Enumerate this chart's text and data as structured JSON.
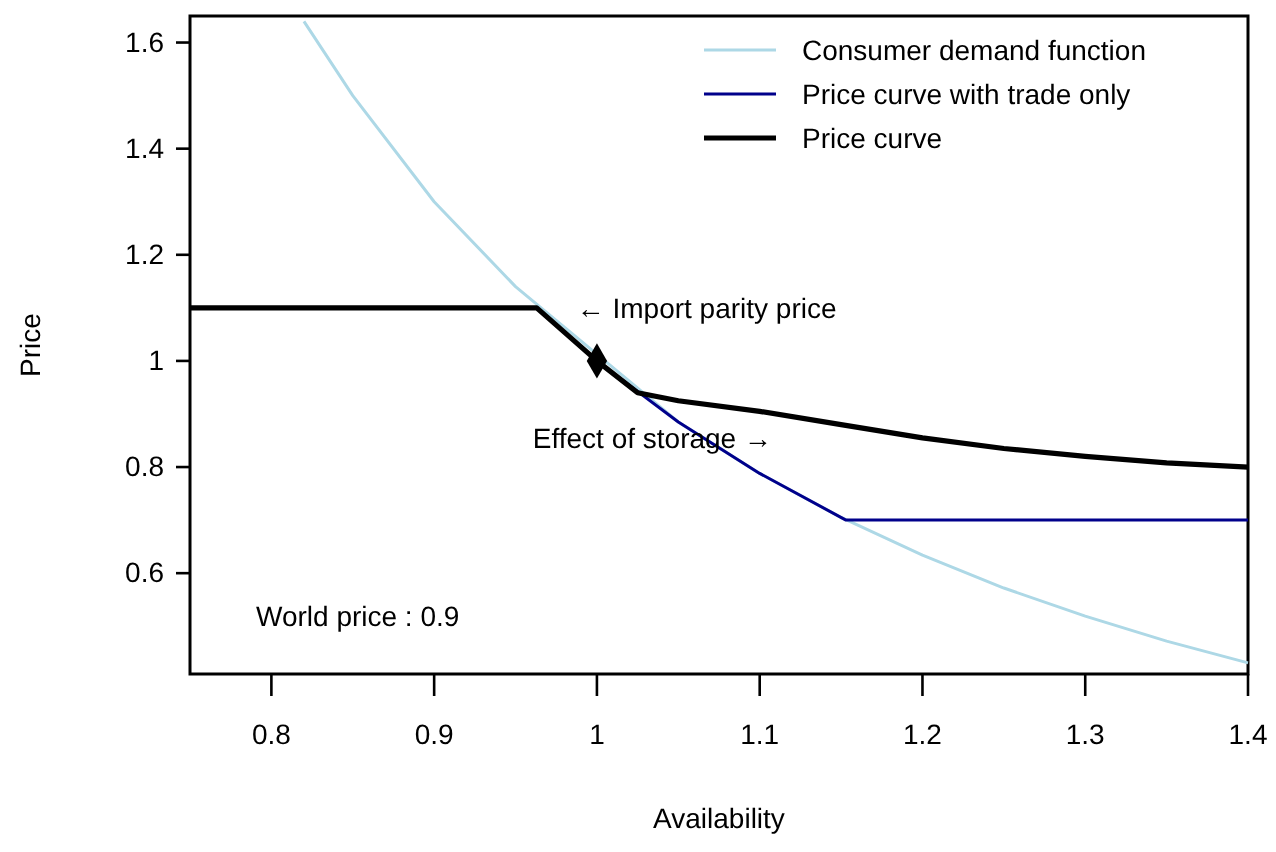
{
  "chart_data": {
    "type": "line",
    "xlabel": "Availability",
    "ylabel": "Price",
    "xlim": [
      0.75,
      1.4
    ],
    "ylim": [
      0.41,
      1.65
    ],
    "xticks": [
      0.8,
      0.9,
      1,
      1.1,
      1.2,
      1.3,
      1.4
    ],
    "yticks": [
      0.6,
      0.8,
      1,
      1.2,
      1.4,
      1.6
    ],
    "grid": false,
    "legend": "top right",
    "series": [
      {
        "name": "Consumer demand function",
        "color": "#add8e6",
        "x": [
          0.82,
          0.85,
          0.9,
          0.95,
          1.05,
          1.1,
          1.15,
          1.2,
          1.25,
          1.3,
          1.35,
          1.4
        ],
        "values": [
          1.64,
          1.5,
          1.3,
          1.14,
          0.885,
          0.788,
          0.705,
          0.634,
          0.572,
          0.519,
          0.472,
          0.431
        ]
      },
      {
        "name": "Price curve with trade only",
        "color": "#00008b",
        "x": [
          0.75,
          0.963,
          1.0,
          1.05,
          1.1,
          1.153,
          1.4
        ],
        "values": [
          1.1,
          1.1,
          1,
          0.885,
          0.788,
          0.7,
          0.7
        ]
      },
      {
        "name": "Price curve",
        "color": "#000000",
        "x": [
          0.75,
          0.963,
          1.0,
          1.025,
          1.05,
          1.1,
          1.15,
          1.2,
          1.25,
          1.3,
          1.35,
          1.4
        ],
        "values": [
          1.1,
          1.1,
          1,
          0.94,
          0.925,
          0.905,
          0.88,
          0.855,
          0.835,
          0.82,
          0.808,
          0.8
        ]
      },
      {
        "type": "scatter",
        "marker": "diamond",
        "color": "#000000",
        "x": [
          1.0
        ],
        "values": [
          1
        ]
      }
    ],
    "annotations": [
      {
        "text": "← Import parity price",
        "x": 0.963,
        "y": 1.1
      },
      "Effect of storage →",
      "World price : 0.9"
    ]
  }
}
